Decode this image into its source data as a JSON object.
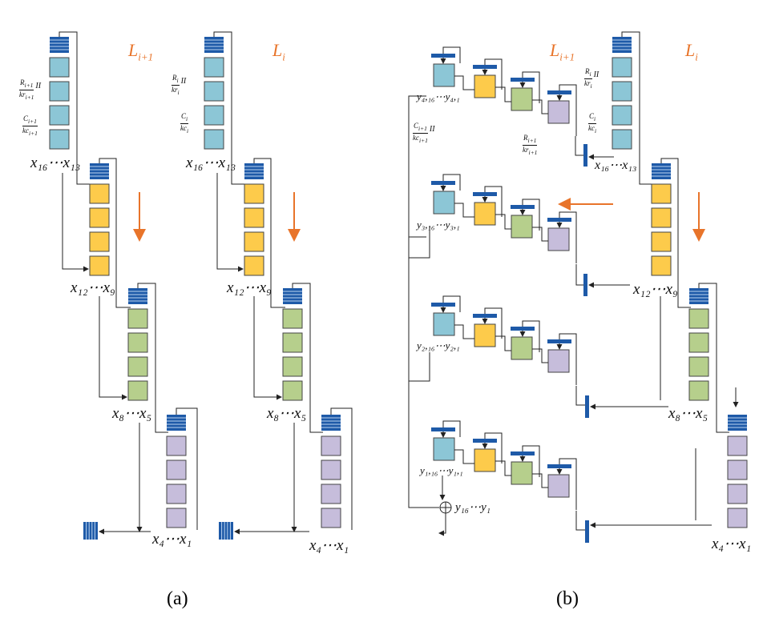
{
  "captions": {
    "a": "(a)",
    "b": "(b)"
  },
  "layers": {
    "next": "L_{i+1}",
    "current": "L_i"
  },
  "labels": {
    "x16_13": "x₁₆⋯x₁₃",
    "x12_9": "x₁₂⋯x₉",
    "x8_5": "x₈⋯x₅",
    "x4_1": "x₄⋯x₁",
    "y4": "y₄,₁₆⋯y₄,₁",
    "y3": "y₃,₁₆⋯y₃,₁",
    "y2": "y₂,₁₆⋯y₂,₁",
    "y1": "y₁,₁₆⋯y₁,₁",
    "ysum": "y₁₆⋯y₁"
  },
  "fractions": {
    "r_next": {
      "num": "R_{i+1}",
      "den": "kr_{i+1}",
      "tail": "II"
    },
    "c_next": {
      "num": "C_{i+1}",
      "den": "kc_{i+1}",
      "tail": ""
    },
    "r_cur": {
      "num": "R_i",
      "den": "kr_i",
      "tail": "II"
    },
    "c_cur": {
      "num": "C_i",
      "den": "kc_i",
      "tail": ""
    },
    "b_c_next": {
      "num": "C_{i+1}",
      "den": "kc_{i+1}",
      "tail": "II"
    },
    "b_r_cur": {
      "num": "R_i",
      "den": "kr_i",
      "tail": "II"
    },
    "b_c_cur": {
      "num": "C_i",
      "den": "kc_i",
      "tail": ""
    },
    "b_r_next": {
      "num": "R_{i+1}",
      "den": "kr_{i+1}",
      "tail": ""
    }
  },
  "colors": {
    "blue_box": "#8cc6d6",
    "yellow_box": "#fdcb4b",
    "green_box": "#b6cf8c",
    "purple_box": "#c6bddb",
    "fifo": "#1e5aa8",
    "arrow_orange": "#e8742a",
    "line": "#222222"
  },
  "icons": [
    "fifo-buffer-icon",
    "register-bar-icon",
    "adder-icon",
    "flow-arrow-icon"
  ]
}
